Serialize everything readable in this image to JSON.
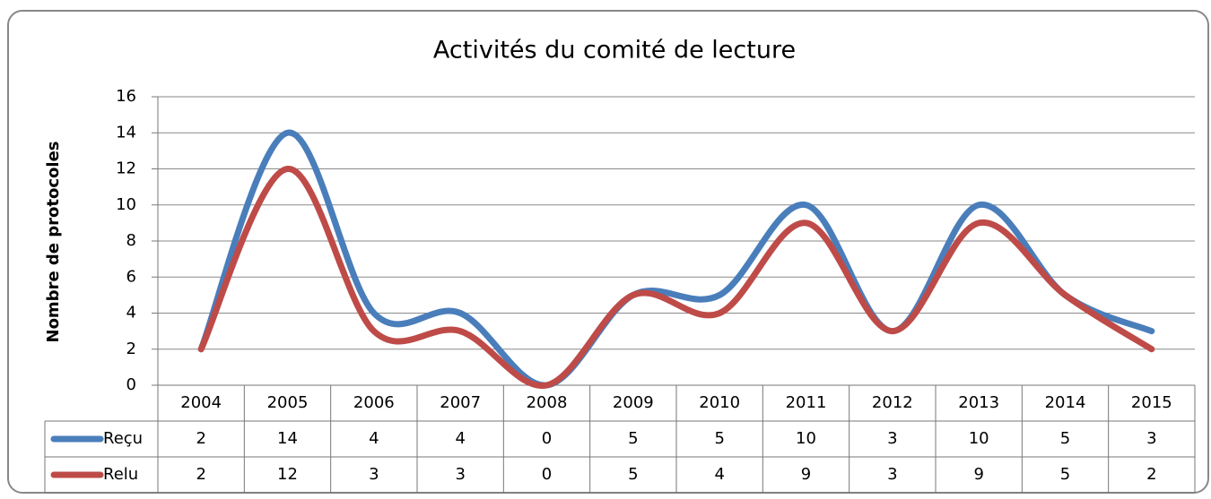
{
  "chart_data": {
    "type": "line",
    "title": "Activités du comité de lecture",
    "ylabel": "Nombre de protocoles",
    "categories": [
      "2004",
      "2005",
      "2006",
      "2007",
      "2008",
      "2009",
      "2010",
      "2011",
      "2012",
      "2013",
      "2014",
      "2015"
    ],
    "series": [
      {
        "name": "Reçu",
        "color": "#4a7ebb",
        "values": [
          2,
          14,
          4,
          4,
          0,
          5,
          5,
          10,
          3,
          10,
          5,
          3
        ]
      },
      {
        "name": "Relu",
        "color": "#be4b48",
        "values": [
          2,
          12,
          3,
          3,
          0,
          5,
          4,
          9,
          3,
          9,
          5,
          2
        ]
      }
    ],
    "ylim": [
      0,
      16
    ],
    "yticks": [
      0,
      2,
      4,
      6,
      8,
      10,
      12,
      14,
      16
    ],
    "grid": true,
    "smooth": true,
    "data_table": true
  }
}
